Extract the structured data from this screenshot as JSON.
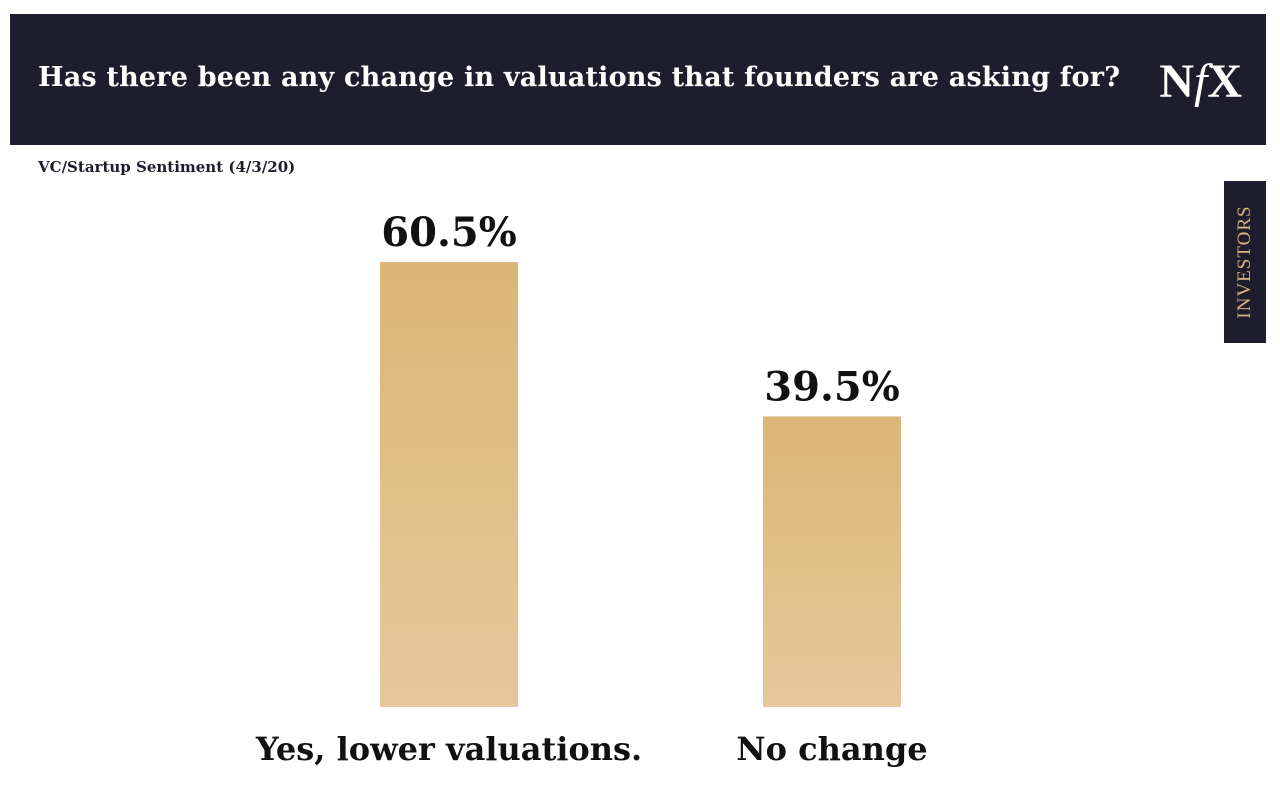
{
  "header": {
    "title": "Has there been any change in valuations that founders are asking for?",
    "logo": {
      "left": "N",
      "middle": "f",
      "right": "X"
    }
  },
  "subtitle": "VC/Startup Sentiment (4/3/20)",
  "side_tab": {
    "label": "INVESTORS"
  },
  "colors": {
    "header_bg": "#1d1d2e",
    "bar_top": "#dcb676",
    "bar_bottom": "#e5c89b",
    "tab_text": "#d8b779",
    "label_text": "#111111"
  },
  "chart_data": {
    "type": "bar",
    "categories": [
      "Yes, lower valuations.",
      "No change"
    ],
    "values": [
      60.5,
      39.5
    ],
    "data_labels": [
      "60.5%",
      "39.5%"
    ],
    "title": "Has there been any change in valuations that founders are asking for?",
    "subtitle": "VC/Startup Sentiment (4/3/20)",
    "ylim": [
      0,
      60.5
    ],
    "grid": false,
    "legend": "none"
  }
}
